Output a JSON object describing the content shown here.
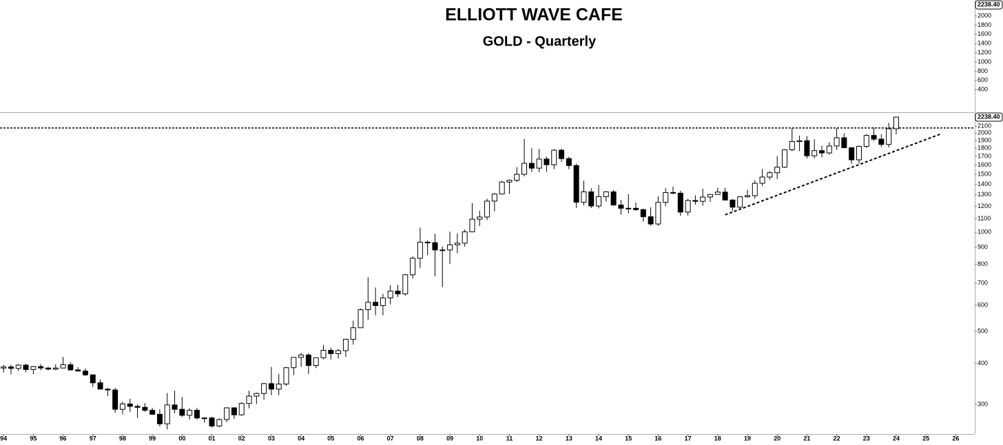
{
  "chart_data": {
    "type": "candlestick",
    "title": "ELLIOTT WAVE CAFE",
    "subtitle": "GOLD - Quarterly",
    "x": [
      1994,
      1994.25,
      1994.5,
      1994.75,
      1995,
      1995.25,
      1995.5,
      1995.75,
      1996,
      1996.25,
      1996.5,
      1996.75,
      1997,
      1997.25,
      1997.5,
      1997.75,
      1998,
      1998.25,
      1998.5,
      1998.75,
      1999,
      1999.25,
      1999.5,
      1999.75,
      2000,
      2000.25,
      2000.5,
      2000.75,
      2001,
      2001.25,
      2001.5,
      2001.75,
      2002,
      2002.25,
      2002.5,
      2002.75,
      2003,
      2003.25,
      2003.5,
      2003.75,
      2004,
      2004.25,
      2004.5,
      2004.75,
      2005,
      2005.25,
      2005.5,
      2005.75,
      2006,
      2006.25,
      2006.5,
      2006.75,
      2007,
      2007.25,
      2007.5,
      2007.75,
      2008,
      2008.25,
      2008.5,
      2008.75,
      2009,
      2009.25,
      2009.5,
      2009.75,
      2010,
      2010.25,
      2010.5,
      2010.75,
      2011,
      2011.25,
      2011.5,
      2011.75,
      2012,
      2012.25,
      2012.5,
      2012.75,
      2013,
      2013.25,
      2013.5,
      2013.75,
      2014,
      2014.25,
      2014.5,
      2014.75,
      2015,
      2015.25,
      2015.5,
      2015.75,
      2016,
      2016.25,
      2016.5,
      2016.75,
      2017,
      2017.25,
      2017.5,
      2017.75,
      2018,
      2018.25,
      2018.5,
      2018.75,
      2019,
      2019.25,
      2019.5,
      2019.75,
      2020,
      2020.25,
      2020.5,
      2020.75,
      2021,
      2021.25,
      2021.5,
      2021.75,
      2022,
      2022.25,
      2022.5,
      2022.75,
      2023,
      2023.25,
      2023.5,
      2023.75,
      2024
    ],
    "open": [
      387,
      390,
      386,
      395,
      383,
      391,
      387,
      384,
      387,
      396,
      382,
      379,
      369,
      349,
      334,
      332,
      290,
      301,
      296,
      294,
      288,
      280,
      262,
      299,
      290,
      278,
      288,
      273,
      273,
      258,
      270,
      293,
      279,
      302,
      318,
      324,
      347,
      334,
      346,
      388,
      417,
      424,
      394,
      416,
      438,
      428,
      437,
      473,
      513,
      582,
      613,
      599,
      632,
      663,
      650,
      743,
      834,
      933,
      930,
      884,
      884,
      916,
      927,
      1003,
      1096,
      1113,
      1244,
      1307,
      1421,
      1439,
      1500,
      1620,
      1566,
      1669,
      1604,
      1776,
      1675,
      1595,
      1234,
      1327,
      1202,
      1284,
      1327,
      1210,
      1183,
      1183,
      1172,
      1115,
      1060,
      1233,
      1321,
      1315,
      1152,
      1249,
      1242,
      1280,
      1303,
      1325,
      1253,
      1192,
      1282,
      1292,
      1409,
      1472,
      1517,
      1577,
      1781,
      1886,
      1898,
      1708,
      1770,
      1742,
      1829,
      1937,
      1807,
      1660,
      1824,
      1969,
      1919,
      1849,
      2063
    ],
    "high": [
      396,
      396,
      398,
      398,
      393,
      398,
      390,
      397,
      418,
      403,
      389,
      386,
      370,
      357,
      336,
      337,
      306,
      312,
      300,
      303,
      293,
      290,
      325,
      330,
      316,
      292,
      293,
      274,
      275,
      272,
      294,
      294,
      305,
      330,
      326,
      349,
      390,
      372,
      390,
      417,
      431,
      429,
      416,
      455,
      446,
      442,
      475,
      539,
      587,
      730,
      680,
      650,
      691,
      692,
      746,
      845,
      1033,
      945,
      990,
      906,
      1005,
      992,
      1020,
      1227,
      1163,
      1265,
      1315,
      1432,
      1447,
      1577,
      1921,
      1803,
      1791,
      1696,
      1790,
      1796,
      1696,
      1616,
      1434,
      1361,
      1392,
      1332,
      1345,
      1255,
      1307,
      1232,
      1180,
      1191,
      1287,
      1362,
      1375,
      1337,
      1264,
      1295,
      1357,
      1299,
      1366,
      1365,
      1262,
      1287,
      1346,
      1439,
      1557,
      1535,
      1703,
      1789,
      2075,
      1966,
      1959,
      1916,
      1834,
      1877,
      2070,
      1998,
      1814,
      1833,
      1989,
      2080,
      1987,
      2150,
      2238.4
    ],
    "low": [
      375,
      370,
      379,
      376,
      371,
      381,
      381,
      381,
      386,
      380,
      378,
      366,
      339,
      334,
      318,
      283,
      280,
      285,
      273,
      285,
      279,
      257,
      252,
      282,
      275,
      270,
      270,
      264,
      255,
      256,
      265,
      271,
      277,
      292,
      301,
      310,
      320,
      320,
      342,
      368,
      390,
      371,
      387,
      411,
      411,
      414,
      418,
      456,
      512,
      542,
      560,
      560,
      604,
      636,
      642,
      723,
      780,
      853,
      735,
      681,
      801,
      864,
      904,
      1002,
      1044,
      1089,
      1157,
      1305,
      1308,
      1420,
      1478,
      1523,
      1523,
      1527,
      1555,
      1635,
      1555,
      1185,
      1207,
      1185,
      1182,
      1240,
      1205,
      1131,
      1142,
      1162,
      1077,
      1046,
      1046,
      1200,
      1306,
      1122,
      1124,
      1214,
      1204,
      1237,
      1302,
      1250,
      1160,
      1180,
      1276,
      1266,
      1382,
      1445,
      1451,
      1568,
      1764,
      1764,
      1677,
      1677,
      1688,
      1721,
      1780,
      1805,
      1615,
      1618,
      1805,
      1893,
      1815,
      1810,
      1984
    ],
    "close": [
      390,
      386,
      395,
      383,
      391,
      387,
      384,
      387,
      396,
      382,
      379,
      369,
      349,
      334,
      332,
      290,
      301,
      296,
      294,
      288,
      280,
      262,
      299,
      290,
      278,
      288,
      273,
      273,
      258,
      270,
      293,
      279,
      302,
      318,
      324,
      347,
      334,
      346,
      388,
      417,
      424,
      394,
      416,
      438,
      428,
      437,
      473,
      513,
      582,
      613,
      599,
      632,
      663,
      650,
      743,
      834,
      933,
      930,
      884,
      884,
      916,
      927,
      1003,
      1096,
      1113,
      1244,
      1307,
      1421,
      1439,
      1500,
      1620,
      1566,
      1669,
      1604,
      1776,
      1675,
      1595,
      1234,
      1327,
      1202,
      1284,
      1327,
      1210,
      1183,
      1183,
      1172,
      1115,
      1060,
      1233,
      1321,
      1315,
      1152,
      1249,
      1242,
      1280,
      1303,
      1325,
      1253,
      1192,
      1282,
      1292,
      1409,
      1472,
      1517,
      1577,
      1781,
      1886,
      1898,
      1708,
      1770,
      1742,
      1829,
      1937,
      1807,
      1660,
      1824,
      1969,
      1919,
      1849,
      2063,
      2238.4
    ],
    "up_color": "#ffffff",
    "down_color": "#000000",
    "xlim": [
      1993.88,
      2026.64
    ],
    "xticks": [
      {
        "value": 1994,
        "label": "94"
      },
      {
        "value": 1995,
        "label": "95"
      },
      {
        "value": 1996,
        "label": "96"
      },
      {
        "value": 1997,
        "label": "97"
      },
      {
        "value": 1998,
        "label": "98"
      },
      {
        "value": 1999,
        "label": "99"
      },
      {
        "value": 2000,
        "label": "00"
      },
      {
        "value": 2001,
        "label": "01"
      },
      {
        "value": 2002,
        "label": "02"
      },
      {
        "value": 2003,
        "label": "03"
      },
      {
        "value": 2004,
        "label": "04"
      },
      {
        "value": 2005,
        "label": "05"
      },
      {
        "value": 2006,
        "label": "06"
      },
      {
        "value": 2007,
        "label": "07"
      },
      {
        "value": 2008,
        "label": "08"
      },
      {
        "value": 2009,
        "label": "09"
      },
      {
        "value": 2010,
        "label": "10"
      },
      {
        "value": 2011,
        "label": "11"
      },
      {
        "value": 2012,
        "label": "12"
      },
      {
        "value": 2013,
        "label": "13"
      },
      {
        "value": 2014,
        "label": "14"
      },
      {
        "value": 2015,
        "label": "15"
      },
      {
        "value": 2016,
        "label": "16"
      },
      {
        "value": 2017,
        "label": "17"
      },
      {
        "value": 2018,
        "label": "18"
      },
      {
        "value": 2019,
        "label": "19"
      },
      {
        "value": 2020,
        "label": "20"
      },
      {
        "value": 2021,
        "label": "21"
      },
      {
        "value": 2022,
        "label": "22"
      },
      {
        "value": 2023,
        "label": "23"
      },
      {
        "value": 2024,
        "label": "24"
      },
      {
        "value": 2025,
        "label": "25"
      },
      {
        "value": 2026,
        "label": "26"
      }
    ],
    "ylim": [
      244,
      2315
    ],
    "log_scale": true,
    "grid": false,
    "yticks": [
      300,
      400,
      500,
      600,
      700,
      800,
      900,
      1000,
      1100,
      1200,
      1300,
      1400,
      1500,
      1600,
      1700,
      1800,
      1900,
      2000,
      2100,
      {
        "value": 2238.4,
        "label": "2238.40"
      }
    ],
    "resistance": 2075,
    "trendline": {
      "x": [
        2018.25,
        2025.5
      ],
      "y": [
        1130,
        1990
      ]
    },
    "upper_panel": {
      "ylim": [
        -90,
        2344
      ],
      "yticks": [
        400,
        600,
        800,
        1000,
        1200,
        1400,
        1600,
        1800,
        2000,
        {
          "value": 2238.4,
          "label": "2238.40"
        }
      ]
    }
  }
}
